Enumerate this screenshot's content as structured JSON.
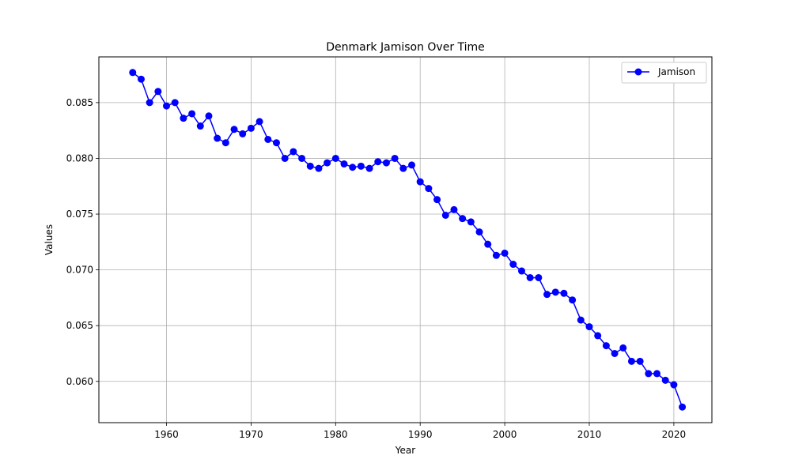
{
  "chart_data": {
    "type": "line",
    "title": "Denmark Jamison Over Time",
    "xlabel": "Year",
    "ylabel": "Values",
    "xlim": [
      1952,
      2024.5
    ],
    "ylim": [
      0.0563,
      0.0891
    ],
    "xticks": [
      1960,
      1970,
      1980,
      1990,
      2000,
      2010,
      2020
    ],
    "yticks": [
      0.06,
      0.065,
      0.07,
      0.075,
      0.08,
      0.085
    ],
    "ytick_labels": [
      "0.060",
      "0.065",
      "0.070",
      "0.075",
      "0.080",
      "0.085"
    ],
    "grid": true,
    "legend_position": "top-right",
    "series": [
      {
        "name": "Jamison",
        "color": "#0000ff",
        "marker": "circle",
        "x": [
          1956,
          1957,
          1958,
          1959,
          1960,
          1961,
          1962,
          1963,
          1964,
          1965,
          1966,
          1967,
          1968,
          1969,
          1970,
          1971,
          1972,
          1973,
          1974,
          1975,
          1976,
          1977,
          1978,
          1979,
          1980,
          1981,
          1982,
          1983,
          1984,
          1985,
          1986,
          1987,
          1988,
          1989,
          1990,
          1991,
          1992,
          1993,
          1994,
          1995,
          1996,
          1997,
          1998,
          1999,
          2000,
          2001,
          2002,
          2003,
          2004,
          2005,
          2006,
          2007,
          2008,
          2009,
          2010,
          2011,
          2012,
          2013,
          2014,
          2015,
          2016,
          2017,
          2018,
          2019,
          2020,
          2021
        ],
        "y": [
          0.0877,
          0.0871,
          0.085,
          0.086,
          0.0847,
          0.085,
          0.0836,
          0.084,
          0.0829,
          0.0838,
          0.0818,
          0.0814,
          0.0826,
          0.0822,
          0.0827,
          0.0833,
          0.0817,
          0.0814,
          0.08,
          0.0806,
          0.08,
          0.0793,
          0.0791,
          0.0796,
          0.08,
          0.0795,
          0.0792,
          0.0793,
          0.0791,
          0.0797,
          0.0796,
          0.08,
          0.0791,
          0.0794,
          0.0779,
          0.0773,
          0.0763,
          0.0749,
          0.0754,
          0.0746,
          0.0743,
          0.0734,
          0.0723,
          0.0713,
          0.0715,
          0.0705,
          0.0699,
          0.0693,
          0.0693,
          0.0678,
          0.068,
          0.0679,
          0.0673,
          0.0655,
          0.0649,
          0.0641,
          0.0632,
          0.0625,
          0.063,
          0.0618,
          0.0618,
          0.0607,
          0.0607,
          0.0601,
          0.0597,
          0.0577
        ]
      }
    ]
  }
}
